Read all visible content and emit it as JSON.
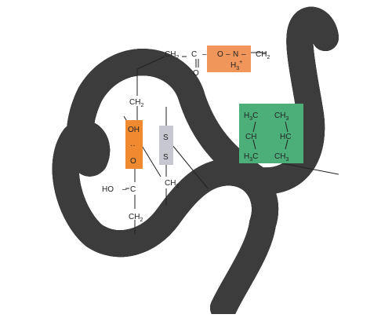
{
  "colors": {
    "tube_dark": "#4a4a4a",
    "tube_mid": "#9a9a9a",
    "tube_light": "#e6e6e6",
    "ionic_box": "#f0965a",
    "hbond_box": "#f08a30",
    "disulfide_box": "#c7c7d0",
    "hydrophobic_box": "#4caf7a",
    "helix_line": "#1c1c1c"
  },
  "ionic_bond": {
    "left_ch2": "CH",
    "left_ch2_sub": "2",
    "carbon": "C",
    "carbonyl_o": "O",
    "ionic_o": "O",
    "dash": "–",
    "nitrogen": "N",
    "nitrogen_dash": "–",
    "h3_main": "H",
    "h3_sub": "3",
    "h3_sup": "+",
    "right_ch2": "CH",
    "right_ch2_sub": "2"
  },
  "hydrogen_bond": {
    "top_ch2": "CH",
    "top_ch2_sub": "2",
    "oh": "OH",
    "dots": "··",
    "o": "O",
    "ho": "HO",
    "dash": "–",
    "c": "C",
    "bottom_ch2": "CH",
    "bottom_ch2_sub": "2"
  },
  "disulfide_bond": {
    "s_top": "S",
    "s_bottom": "S",
    "ch2": "CH",
    "ch2_sub": "2"
  },
  "hydrophobic": {
    "tl_h": "H",
    "tl_sub": "3",
    "tl_c": "C",
    "tr_ch": "CH",
    "tr_sub": "3",
    "ml": "CH",
    "mr": "HC",
    "bl_h": "H",
    "bl_sub": "3",
    "bl_c": "C",
    "br_ch": "CH",
    "br_sub": "3"
  }
}
